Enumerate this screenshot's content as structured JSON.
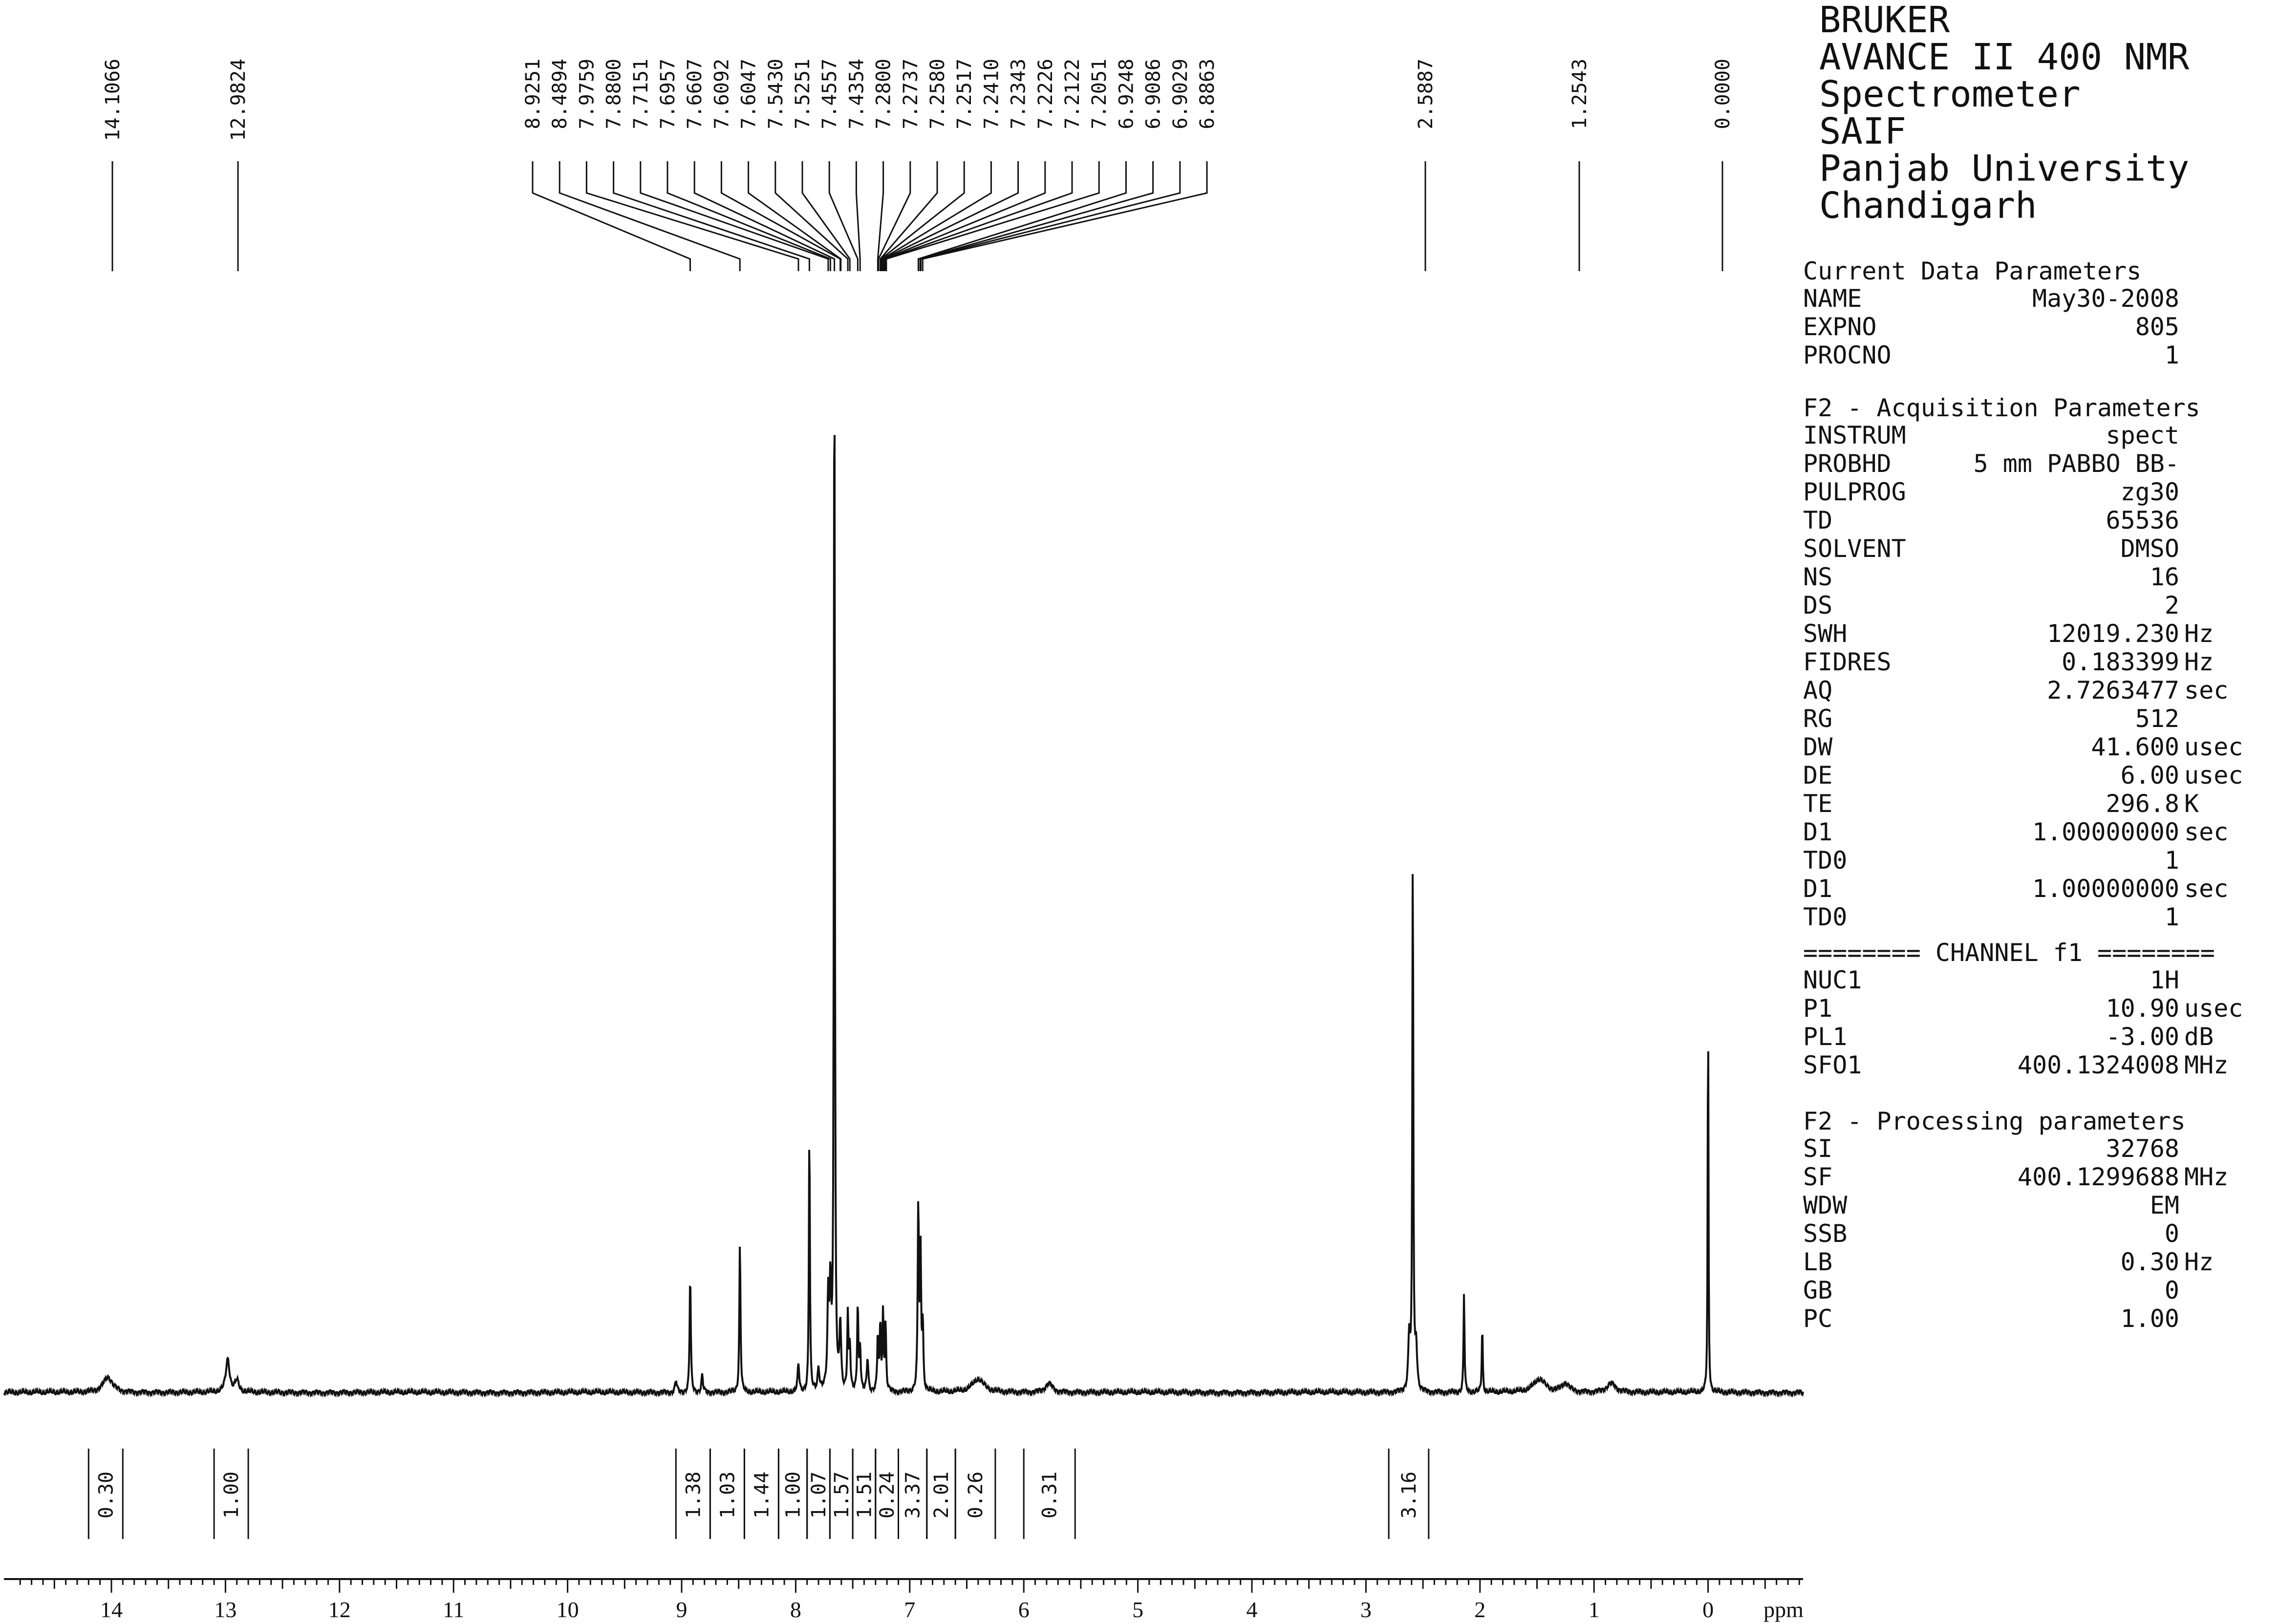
{
  "header": {
    "lines": [
      "BRUKER",
      "AVANCE II 400 NMR",
      "Spectrometer",
      "SAIF",
      "Panjab University",
      "Chandigarh"
    ]
  },
  "params": {
    "sections": [
      {
        "title": "Current Data Parameters",
        "rows": [
          {
            "key": "NAME",
            "value": "May30-2008",
            "unit": ""
          },
          {
            "key": "EXPNO",
            "value": "805",
            "unit": ""
          },
          {
            "key": "PROCNO",
            "value": "1",
            "unit": ""
          }
        ]
      },
      {
        "title": "F2 - Acquisition Parameters",
        "rows": [
          {
            "key": "INSTRUM",
            "value": "spect",
            "unit": ""
          },
          {
            "key": "PROBHD",
            "value": "5 mm PABBO BB-",
            "unit": ""
          },
          {
            "key": "PULPROG",
            "value": "zg30",
            "unit": ""
          },
          {
            "key": "TD",
            "value": "65536",
            "unit": ""
          },
          {
            "key": "SOLVENT",
            "value": "DMSO",
            "unit": ""
          },
          {
            "key": "NS",
            "value": "16",
            "unit": ""
          },
          {
            "key": "DS",
            "value": "2",
            "unit": ""
          },
          {
            "key": "SWH",
            "value": "12019.230",
            "unit": "Hz"
          },
          {
            "key": "FIDRES",
            "value": "0.183399",
            "unit": "Hz"
          },
          {
            "key": "AQ",
            "value": "2.7263477",
            "unit": "sec"
          },
          {
            "key": "RG",
            "value": "512",
            "unit": ""
          },
          {
            "key": "DW",
            "value": "41.600",
            "unit": "usec"
          },
          {
            "key": "DE",
            "value": "6.00",
            "unit": "usec"
          },
          {
            "key": "TE",
            "value": "296.8",
            "unit": "K"
          },
          {
            "key": "D1",
            "value": "1.00000000",
            "unit": "sec"
          },
          {
            "key": "TD0",
            "value": "1",
            "unit": ""
          },
          {
            "key": "D1",
            "value": "1.00000000",
            "unit": "sec"
          },
          {
            "key": "TD0",
            "value": "1",
            "unit": ""
          }
        ]
      },
      {
        "title": "======== CHANNEL f1 ========",
        "rows": [
          {
            "key": "NUC1",
            "value": "1H",
            "unit": ""
          },
          {
            "key": "P1",
            "value": "10.90",
            "unit": "usec"
          },
          {
            "key": "PL1",
            "value": "-3.00",
            "unit": "dB"
          },
          {
            "key": "SFO1",
            "value": "400.1324008",
            "unit": "MHz"
          }
        ]
      },
      {
        "title": "F2 - Processing parameters",
        "rows": [
          {
            "key": "SI",
            "value": "32768",
            "unit": ""
          },
          {
            "key": "SF",
            "value": "400.1299688",
            "unit": "MHz"
          },
          {
            "key": "WDW",
            "value": "EM",
            "unit": ""
          },
          {
            "key": "SSB",
            "value": "0",
            "unit": ""
          },
          {
            "key": "LB",
            "value": "0.30",
            "unit": "Hz"
          },
          {
            "key": "GB",
            "value": "0",
            "unit": ""
          },
          {
            "key": "PC",
            "value": "1.00",
            "unit": ""
          }
        ]
      }
    ]
  },
  "chart_data": {
    "type": "line",
    "xlabel": "ppm",
    "xlim": [
      15.0,
      -0.8
    ],
    "x_ticks": [
      14,
      13,
      12,
      11,
      10,
      9,
      8,
      7,
      6,
      5,
      4,
      3,
      2,
      1,
      0
    ],
    "x_tick_labels": [
      "14",
      "13",
      "12",
      "11",
      "10",
      "9",
      "8",
      "7",
      "6",
      "5",
      "4",
      "3",
      "2",
      "1",
      "0"
    ],
    "peak_labels": [
      "14.1066",
      "12.9824",
      "8.9251",
      "8.4894",
      "7.9759",
      "7.8800",
      "7.7151",
      "7.6957",
      "7.6607",
      "7.6092",
      "7.6047",
      "7.5430",
      "7.5251",
      "7.4557",
      "7.4354",
      "7.2800",
      "7.2737",
      "7.2580",
      "7.2517",
      "7.2410",
      "7.2343",
      "7.2226",
      "7.2122",
      "7.2051",
      "6.9248",
      "6.9086",
      "6.9029",
      "6.8863",
      "2.5887",
      "1.2543",
      "0.0000"
    ],
    "peak_groups": [
      [
        0
      ],
      [
        1
      ],
      [
        2,
        3,
        4,
        5,
        6,
        7,
        8,
        9,
        10,
        11,
        12,
        13,
        14,
        15,
        16,
        17,
        18,
        19,
        20,
        21,
        22,
        23,
        24,
        25,
        26,
        27
      ],
      [
        28
      ],
      [
        29
      ],
      [
        30
      ]
    ],
    "peaks": [
      {
        "ppm": 14.03,
        "height": 0.014,
        "width": 0.05
      },
      {
        "ppm": 12.98,
        "height": 0.03,
        "width": 0.02
      },
      {
        "ppm": 12.9,
        "height": 0.01,
        "width": 0.02
      },
      {
        "ppm": 9.05,
        "height": 0.01,
        "width": 0.01
      },
      {
        "ppm": 8.925,
        "height": 0.107,
        "width": 0.006
      },
      {
        "ppm": 8.82,
        "height": 0.015,
        "width": 0.008
      },
      {
        "ppm": 8.489,
        "height": 0.135,
        "width": 0.006
      },
      {
        "ppm": 7.976,
        "height": 0.025,
        "width": 0.008
      },
      {
        "ppm": 7.88,
        "height": 0.244,
        "width": 0.005
      },
      {
        "ppm": 7.8,
        "height": 0.02,
        "width": 0.01
      },
      {
        "ppm": 7.715,
        "height": 0.08,
        "width": 0.008
      },
      {
        "ppm": 7.696,
        "height": 0.09,
        "width": 0.008
      },
      {
        "ppm": 7.661,
        "height": 0.997,
        "width": 0.005
      },
      {
        "ppm": 7.609,
        "height": 0.06,
        "width": 0.008
      },
      {
        "ppm": 7.543,
        "height": 0.069,
        "width": 0.006
      },
      {
        "ppm": 7.525,
        "height": 0.04,
        "width": 0.006
      },
      {
        "ppm": 7.456,
        "height": 0.08,
        "width": 0.006
      },
      {
        "ppm": 7.435,
        "height": 0.04,
        "width": 0.006
      },
      {
        "ppm": 7.37,
        "height": 0.03,
        "width": 0.008
      },
      {
        "ppm": 7.28,
        "height": 0.05,
        "width": 0.006
      },
      {
        "ppm": 7.258,
        "height": 0.06,
        "width": 0.006
      },
      {
        "ppm": 7.234,
        "height": 0.07,
        "width": 0.006
      },
      {
        "ppm": 7.212,
        "height": 0.06,
        "width": 0.006
      },
      {
        "ppm": 6.925,
        "height": 0.17,
        "width": 0.006
      },
      {
        "ppm": 6.905,
        "height": 0.12,
        "width": 0.006
      },
      {
        "ppm": 6.886,
        "height": 0.06,
        "width": 0.006
      },
      {
        "ppm": 6.4,
        "height": 0.012,
        "width": 0.06
      },
      {
        "ppm": 5.78,
        "height": 0.008,
        "width": 0.04
      },
      {
        "ppm": 2.62,
        "height": 0.05,
        "width": 0.01
      },
      {
        "ppm": 2.589,
        "height": 0.495,
        "width": 0.005
      },
      {
        "ppm": 2.56,
        "height": 0.04,
        "width": 0.01
      },
      {
        "ppm": 2.14,
        "height": 0.09,
        "width": 0.005
      },
      {
        "ppm": 1.98,
        "height": 0.06,
        "width": 0.005
      },
      {
        "ppm": 1.48,
        "height": 0.012,
        "width": 0.06
      },
      {
        "ppm": 1.25,
        "height": 0.008,
        "width": 0.04
      },
      {
        "ppm": 0.85,
        "height": 0.008,
        "width": 0.05
      },
      {
        "ppm": 0.0,
        "height": 0.363,
        "width": 0.004
      }
    ],
    "integrals": [
      {
        "value": "0.30",
        "from": 14.2,
        "to": 13.9
      },
      {
        "value": "1.00",
        "from": 13.1,
        "to": 12.8
      },
      {
        "value": "1.38",
        "from": 9.05,
        "to": 8.75
      },
      {
        "value": "1.03",
        "from": 8.75,
        "to": 8.45
      },
      {
        "value": "1.44",
        "from": 8.45,
        "to": 8.15
      },
      {
        "value": "1.00",
        "from": 8.15,
        "to": 7.9
      },
      {
        "value": "1.07",
        "from": 7.9,
        "to": 7.7
      },
      {
        "value": "1.57",
        "from": 7.7,
        "to": 7.5
      },
      {
        "value": "1.51",
        "from": 7.5,
        "to": 7.3
      },
      {
        "value": "0.24",
        "from": 7.3,
        "to": 7.1
      },
      {
        "value": "3.37",
        "from": 7.1,
        "to": 6.85
      },
      {
        "value": "2.01",
        "from": 6.85,
        "to": 6.6
      },
      {
        "value": "0.26",
        "from": 6.6,
        "to": 6.25
      },
      {
        "value": "0.31",
        "from": 6.0,
        "to": 5.55
      },
      {
        "value": "3.16",
        "from": 2.8,
        "to": 2.45
      }
    ]
  }
}
